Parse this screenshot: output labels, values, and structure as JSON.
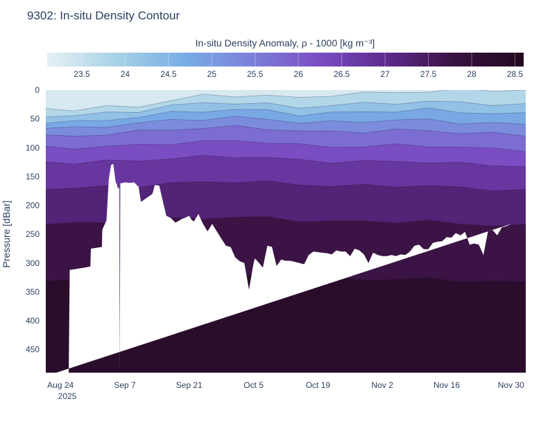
{
  "title": "9302: In-situ Density Contour",
  "chart_data": {
    "type": "heatmap",
    "title": "9302: In-situ Density Contour",
    "colorbar": {
      "title": "In-situ Density Anomaly, ρ - 1000 [kg m⁻³]",
      "range": [
        23.1,
        28.6
      ],
      "ticks": [
        "23.5",
        "24",
        "24.5",
        "25",
        "25.5",
        "26",
        "26.5",
        "27",
        "27.5",
        "28",
        "28.5"
      ],
      "tick_values": [
        23.5,
        24,
        24.5,
        25,
        25.5,
        26,
        26.5,
        27,
        27.5,
        28,
        28.5
      ],
      "colors": [
        "#e6f0f4",
        "#a8d2e6",
        "#78aee6",
        "#7c80da",
        "#7a4dc2",
        "#5c2a8c",
        "#38123f",
        "#22091f"
      ]
    },
    "yaxis": {
      "title": "Pressure [dBar]",
      "range": [
        0,
        490
      ],
      "reversed": true,
      "ticks": [
        "0",
        "50",
        "100",
        "150",
        "200",
        "250",
        "300",
        "350",
        "400",
        "450"
      ],
      "tick_values": [
        0,
        50,
        100,
        150,
        200,
        250,
        300,
        350,
        400,
        450
      ]
    },
    "xaxis": {
      "title": "",
      "range_days_from_aug24": [
        -3.2,
        101.2
      ],
      "ticks": [
        "Aug 24",
        "Sep 7",
        "Sep 21",
        "Oct 5",
        "Oct 19",
        "Nov 2",
        "Nov 16",
        "Nov 30"
      ],
      "tick_days": [
        0,
        14,
        28,
        42,
        56,
        70,
        84,
        98
      ],
      "year_label": "2025"
    },
    "max_depth_profile": {
      "days": [
        -3.2,
        1.8,
        2.0,
        3.6,
        6.5,
        6.6,
        9.0,
        9.1,
        10.0,
        10.5,
        11.0,
        11.5,
        12.0,
        12.2,
        12.4,
        12.6,
        12.8,
        12.9,
        13.0,
        14.0,
        15.0,
        16.0,
        17.0,
        17.5,
        20.0,
        20.5,
        21.0,
        21.5,
        23.0,
        24.0,
        25.0,
        26.5,
        27.0,
        28.0,
        28.5,
        29.0,
        30.0,
        31.0,
        32.0,
        33.0,
        34.0,
        35.0,
        36.0,
        37.0,
        38.0,
        39.0,
        40.0,
        41.0,
        42.0,
        42.3,
        43.0,
        44.0,
        45.0,
        46.0,
        47.0,
        48.0,
        49.0,
        50.0,
        51.0,
        52.0,
        53.0,
        54.0,
        55.0,
        56.0,
        58.0,
        59.0,
        60.0,
        61.0,
        62.0,
        63.0,
        64.0,
        65.0,
        66.0,
        67.0,
        68.0,
        69.0,
        70.0,
        71.0,
        72.0,
        73.0,
        74.0,
        75.0,
        76.0,
        77.0,
        78.0,
        79.0,
        80.0,
        81.0,
        82.0,
        83.0,
        84.0,
        85.0,
        86.0,
        87.0,
        88.0,
        89.0,
        90.0,
        91.0,
        92.0,
        93.0,
        94.0,
        95.0,
        96.0,
        97.0,
        98.0,
        99.0,
        100.0,
        101.2
      ],
      "pressure": [
        490,
        490,
        312,
        310,
        306,
        275,
        272,
        242,
        226,
        155,
        130,
        128,
        160,
        162,
        168,
        172,
        166,
        490,
        162,
        160,
        161,
        160,
        168,
        194,
        180,
        165,
        165,
        166,
        218,
        222,
        230,
        223,
        222,
        218,
        225,
        228,
        215,
        232,
        245,
        232,
        245,
        258,
        270,
        272,
        290,
        297,
        300,
        346,
        300,
        292,
        298,
        308,
        270,
        272,
        305,
        294,
        296,
        296,
        298,
        300,
        302,
        286,
        280,
        281,
        283,
        285,
        278,
        280,
        280,
        288,
        275,
        278,
        285,
        300,
        282,
        286,
        288,
        288,
        286,
        288,
        285,
        286,
        280,
        270,
        268,
        276,
        276,
        265,
        263,
        262,
        255,
        256,
        248,
        252,
        246,
        268,
        266,
        268,
        286,
        245,
        243,
        252,
        238,
        236,
        232
      ]
    },
    "isopycnal_depths": [
      {
        "density": 23.5,
        "depth_profile": [
          32,
          34,
          30,
          28,
          18,
          10,
          9,
          10,
          14,
          8,
          6,
          4,
          2,
          0,
          0,
          0
        ]
      },
      {
        "density": 24.0,
        "depth_profile": [
          44,
          45,
          40,
          36,
          28,
          22,
          22,
          25,
          30,
          26,
          24,
          22,
          20,
          22,
          24,
          26
        ]
      },
      {
        "density": 24.5,
        "depth_profile": [
          55,
          56,
          52,
          46,
          40,
          36,
          34,
          36,
          42,
          40,
          38,
          36,
          34,
          38,
          40,
          42
        ]
      },
      {
        "density": 25.0,
        "depth_profile": [
          66,
          66,
          62,
          58,
          52,
          50,
          48,
          50,
          56,
          56,
          54,
          52,
          52,
          56,
          58,
          60
        ]
      },
      {
        "density": 25.5,
        "depth_profile": [
          80,
          80,
          76,
          72,
          68,
          66,
          64,
          66,
          72,
          72,
          72,
          70,
          70,
          74,
          76,
          78
        ]
      },
      {
        "density": 26.0,
        "depth_profile": [
          100,
          100,
          98,
          96,
          92,
          90,
          88,
          90,
          96,
          98,
          98,
          96,
          96,
          100,
          102,
          104
        ]
      },
      {
        "density": 26.5,
        "depth_profile": [
          125,
          126,
          124,
          122,
          118,
          116,
          115,
          117,
          122,
          124,
          124,
          124,
          124,
          128,
          130,
          132
        ]
      },
      {
        "density": 27.0,
        "depth_profile": [
          170,
          170,
          168,
          166,
          162,
          160,
          158,
          160,
          164,
          166,
          166,
          166,
          166,
          170,
          172,
          174
        ]
      },
      {
        "density": 27.5,
        "depth_profile": [
          230,
          232,
          230,
          228,
          224,
          222,
          220,
          222,
          226,
          228,
          228,
          228,
          228,
          232,
          234,
          236
        ]
      },
      {
        "density": 28.0,
        "depth_profile": [
          330,
          332,
          330,
          328,
          326,
          324,
          322,
          324,
          326,
          328,
          328,
          328,
          328,
          330,
          332,
          334
        ]
      }
    ],
    "profile_days": [
      -3.2,
      3,
      10,
      17,
      24,
      31,
      38,
      45,
      52,
      59,
      66,
      73,
      80,
      87,
      94,
      101.2
    ]
  }
}
